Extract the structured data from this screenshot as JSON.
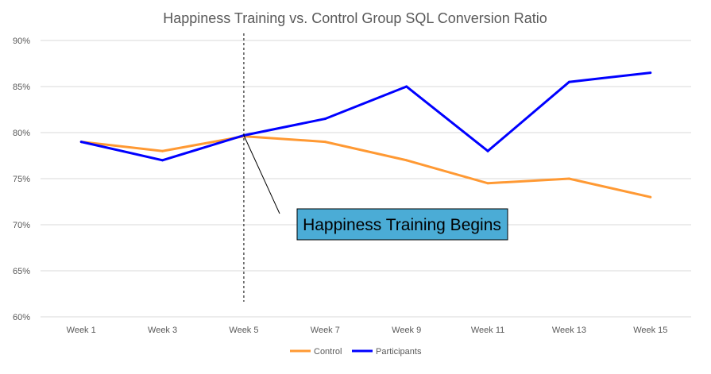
{
  "chart_data": {
    "type": "line",
    "title": "Happiness Training vs. Control Group SQL Conversion Ratio",
    "categories": [
      "Week 1",
      "Week 3",
      "Week 5",
      "Week 7",
      "Week 9",
      "Week 11",
      "Week 13",
      "Week 15"
    ],
    "ylim": [
      60,
      90
    ],
    "yticks": [
      "60%",
      "65%",
      "70%",
      "75%",
      "80%",
      "85%",
      "90%"
    ],
    "yticks_values": [
      60,
      65,
      70,
      75,
      80,
      85,
      90
    ],
    "grid": true,
    "legend_position": "bottom",
    "series": [
      {
        "name": "Control",
        "color": "#FF9933",
        "values": [
          79,
          78,
          79.6,
          79,
          77,
          74.5,
          75,
          73
        ]
      },
      {
        "name": "Participants",
        "color": "#0000FF",
        "values": [
          79,
          77,
          79.7,
          81.5,
          85,
          78,
          85.5,
          86.5
        ]
      }
    ],
    "annotation": {
      "text": "Happiness Training Begins",
      "at_category": "Week 5",
      "box_color": "#4BACD6"
    }
  }
}
